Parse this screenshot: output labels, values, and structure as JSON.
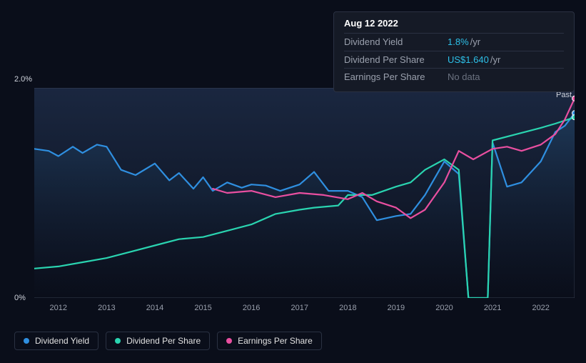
{
  "tooltip": {
    "date": "Aug 12 2022",
    "rows": [
      {
        "label": "Dividend Yield",
        "value": "1.8%",
        "unit": "/yr",
        "accent": true
      },
      {
        "label": "Dividend Per Share",
        "value": "US$1.640",
        "unit": "/yr",
        "accent": true
      },
      {
        "label": "Earnings Per Share",
        "value": "No data",
        "muted": true
      }
    ]
  },
  "chart": {
    "type": "line",
    "background": "#0a0e1a",
    "plot_gradient_top": "#1a2740",
    "plot_gradient_bottom": "#0a0e1a",
    "border_color": "#3a4255",
    "past_label": "Past",
    "y": {
      "min_label": "0%",
      "max_label": "2.0%",
      "ymin": 0,
      "ymax": 2.0
    },
    "x": {
      "ticks": [
        "2012",
        "2013",
        "2014",
        "2015",
        "2016",
        "2017",
        "2018",
        "2019",
        "2020",
        "2021",
        "2022"
      ],
      "min": 2011.5,
      "max": 2022.7
    },
    "series": [
      {
        "name": "Dividend Yield",
        "color": "#2f8fe0",
        "width": 2.2,
        "end_marker_color": "#2f8fe0",
        "data": [
          [
            2011.5,
            1.42
          ],
          [
            2011.8,
            1.4
          ],
          [
            2012.0,
            1.35
          ],
          [
            2012.3,
            1.44
          ],
          [
            2012.5,
            1.38
          ],
          [
            2012.8,
            1.46
          ],
          [
            2013.0,
            1.44
          ],
          [
            2013.3,
            1.22
          ],
          [
            2013.6,
            1.17
          ],
          [
            2014.0,
            1.28
          ],
          [
            2014.3,
            1.12
          ],
          [
            2014.5,
            1.19
          ],
          [
            2014.8,
            1.04
          ],
          [
            2015.0,
            1.15
          ],
          [
            2015.2,
            1.02
          ],
          [
            2015.5,
            1.1
          ],
          [
            2015.8,
            1.05
          ],
          [
            2016.0,
            1.08
          ],
          [
            2016.3,
            1.07
          ],
          [
            2016.6,
            1.02
          ],
          [
            2017.0,
            1.08
          ],
          [
            2017.3,
            1.2
          ],
          [
            2017.6,
            1.02
          ],
          [
            2018.0,
            1.02
          ],
          [
            2018.3,
            0.96
          ],
          [
            2018.6,
            0.74
          ],
          [
            2019.0,
            0.78
          ],
          [
            2019.3,
            0.8
          ],
          [
            2019.6,
            0.98
          ],
          [
            2020.0,
            1.3
          ],
          [
            2020.3,
            1.18
          ],
          [
            2020.5,
            0.0
          ],
          [
            2020.7,
            0.0
          ],
          [
            2020.9,
            0.0
          ],
          [
            2021.0,
            1.48
          ],
          [
            2021.3,
            1.06
          ],
          [
            2021.6,
            1.1
          ],
          [
            2022.0,
            1.3
          ],
          [
            2022.3,
            1.58
          ],
          [
            2022.5,
            1.64
          ],
          [
            2022.7,
            1.76
          ]
        ]
      },
      {
        "name": "Dividend Per Share",
        "color": "#2ad4b0",
        "width": 2.2,
        "end_marker_color": "#2ad4b0",
        "data": [
          [
            2011.5,
            0.28
          ],
          [
            2012.0,
            0.3
          ],
          [
            2012.5,
            0.34
          ],
          [
            2013.0,
            0.38
          ],
          [
            2013.5,
            0.44
          ],
          [
            2014.0,
            0.5
          ],
          [
            2014.5,
            0.56
          ],
          [
            2015.0,
            0.58
          ],
          [
            2015.5,
            0.64
          ],
          [
            2016.0,
            0.7
          ],
          [
            2016.5,
            0.8
          ],
          [
            2017.0,
            0.84
          ],
          [
            2017.3,
            0.86
          ],
          [
            2017.8,
            0.88
          ],
          [
            2018.0,
            0.98
          ],
          [
            2018.5,
            0.98
          ],
          [
            2019.0,
            1.06
          ],
          [
            2019.3,
            1.1
          ],
          [
            2019.6,
            1.22
          ],
          [
            2020.0,
            1.32
          ],
          [
            2020.3,
            1.22
          ],
          [
            2020.5,
            0.0
          ],
          [
            2020.9,
            0.0
          ],
          [
            2021.0,
            1.5
          ],
          [
            2021.5,
            1.56
          ],
          [
            2022.0,
            1.62
          ],
          [
            2022.3,
            1.66
          ],
          [
            2022.7,
            1.72
          ]
        ]
      },
      {
        "name": "Earnings Per Share",
        "color": "#e94fa0",
        "width": 2.2,
        "end_marker_color": "#e94fa0",
        "data": [
          [
            2015.2,
            1.04
          ],
          [
            2015.5,
            1.0
          ],
          [
            2016.0,
            1.02
          ],
          [
            2016.5,
            0.96
          ],
          [
            2017.0,
            1.0
          ],
          [
            2017.5,
            0.98
          ],
          [
            2018.0,
            0.94
          ],
          [
            2018.3,
            1.0
          ],
          [
            2018.6,
            0.92
          ],
          [
            2019.0,
            0.86
          ],
          [
            2019.3,
            0.76
          ],
          [
            2019.6,
            0.84
          ],
          [
            2020.0,
            1.1
          ],
          [
            2020.3,
            1.4
          ],
          [
            2020.6,
            1.32
          ],
          [
            2021.0,
            1.42
          ],
          [
            2021.3,
            1.44
          ],
          [
            2021.6,
            1.4
          ],
          [
            2022.0,
            1.46
          ],
          [
            2022.3,
            1.56
          ],
          [
            2022.5,
            1.7
          ],
          [
            2022.7,
            1.9
          ]
        ]
      }
    ],
    "legend": [
      {
        "label": "Dividend Yield",
        "color": "#2f8fe0"
      },
      {
        "label": "Dividend Per Share",
        "color": "#2ad4b0"
      },
      {
        "label": "Earnings Per Share",
        "color": "#e94fa0"
      }
    ]
  }
}
